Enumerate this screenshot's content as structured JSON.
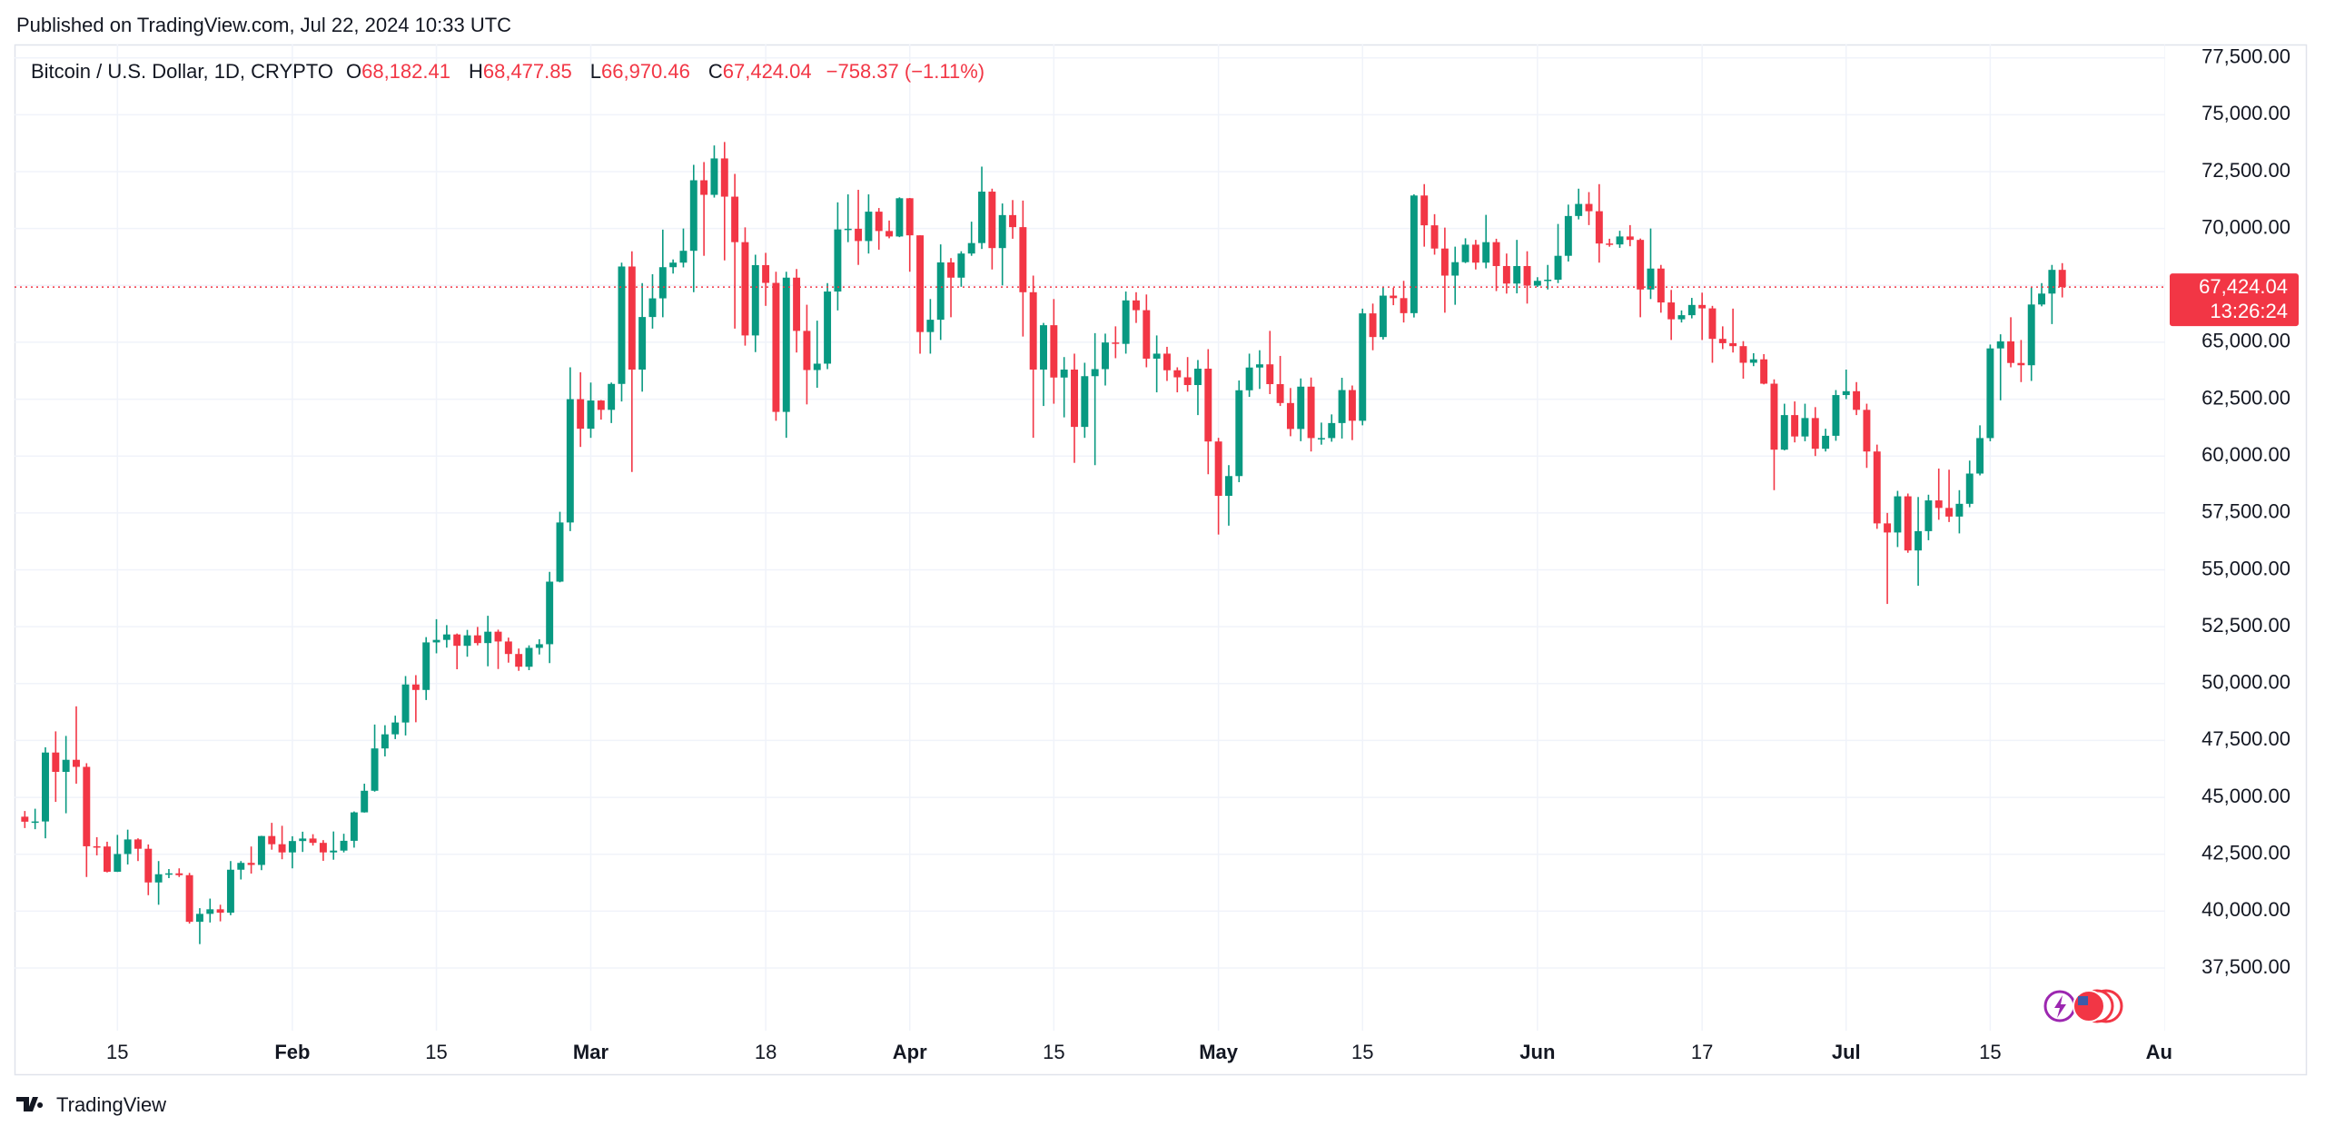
{
  "header": {
    "published": "Published on TradingView.com, Jul 22, 2024 10:33 UTC"
  },
  "footer": {
    "brand": "TradingView"
  },
  "chart_data": {
    "type": "candlestick",
    "legend": {
      "symbol": "Bitcoin / U.S. Dollar, 1D, CRYPTO",
      "items": [
        {
          "key": "O",
          "label": "68,182.41"
        },
        {
          "key": "H",
          "label": "68,477.85"
        },
        {
          "key": "L",
          "label": "66,970.46"
        },
        {
          "key": "C",
          "label": "67,424.04"
        }
      ],
      "change": "−758.37 (−1.11%)"
    },
    "price_label": "67,424.04",
    "countdown": "13:26:24",
    "up_color": "#089981",
    "down_color": "#f23645",
    "grid": true,
    "xlim": [
      "2024-01-05",
      "2024-08-01"
    ],
    "xticks": [
      {
        "value": "2024-01-15",
        "label": "15"
      },
      {
        "value": "2024-02-01",
        "label": "Feb"
      },
      {
        "value": "2024-02-15",
        "label": "15"
      },
      {
        "value": "2024-03-01",
        "label": "Mar"
      },
      {
        "value": "2024-03-18",
        "label": "18"
      },
      {
        "value": "2024-04-01",
        "label": "Apr"
      },
      {
        "value": "2024-04-15",
        "label": "15"
      },
      {
        "value": "2024-05-01",
        "label": "May"
      },
      {
        "value": "2024-05-15",
        "label": "15"
      },
      {
        "value": "2024-06-01",
        "label": "Jun"
      },
      {
        "value": "2024-06-17",
        "label": "17"
      },
      {
        "value": "2024-07-01",
        "label": "Jul"
      },
      {
        "value": "2024-07-15",
        "label": "15"
      },
      {
        "value": "2024-08-01",
        "label": "Aug"
      }
    ],
    "ylim": [
      34746,
      78087
    ],
    "yticks": [
      {
        "value": 37500,
        "label": "37,500.00"
      },
      {
        "value": 40000,
        "label": "40,000.00"
      },
      {
        "value": 42500,
        "label": "42,500.00"
      },
      {
        "value": 45000,
        "label": "45,000.00"
      },
      {
        "value": 47500,
        "label": "47,500.00"
      },
      {
        "value": 50000,
        "label": "50,000.00"
      },
      {
        "value": 52500,
        "label": "52,500.00"
      },
      {
        "value": 55000,
        "label": "55,000.00"
      },
      {
        "value": 57500,
        "label": "57,500.00"
      },
      {
        "value": 60000,
        "label": "60,000.00"
      },
      {
        "value": 62500,
        "label": "62,500.00"
      },
      {
        "value": 65000,
        "label": "65,000.00"
      },
      {
        "value": 67500,
        "label": "67,500.00"
      },
      {
        "value": 70000,
        "label": "70,000.00"
      },
      {
        "value": 72500,
        "label": "72,500.00"
      },
      {
        "value": 75000,
        "label": "75,000.00"
      },
      {
        "value": 77500,
        "label": "77,500.00"
      }
    ],
    "x": [
      "2024-01-06",
      "2024-01-07",
      "2024-01-08",
      "2024-01-09",
      "2024-01-10",
      "2024-01-11",
      "2024-01-12",
      "2024-01-13",
      "2024-01-14",
      "2024-01-15",
      "2024-01-16",
      "2024-01-17",
      "2024-01-18",
      "2024-01-19",
      "2024-01-20",
      "2024-01-21",
      "2024-01-22",
      "2024-01-23",
      "2024-01-24",
      "2024-01-25",
      "2024-01-26",
      "2024-01-27",
      "2024-01-28",
      "2024-01-29",
      "2024-01-30",
      "2024-01-31",
      "2024-02-01",
      "2024-02-02",
      "2024-02-03",
      "2024-02-04",
      "2024-02-05",
      "2024-02-06",
      "2024-02-07",
      "2024-02-08",
      "2024-02-09",
      "2024-02-10",
      "2024-02-11",
      "2024-02-12",
      "2024-02-13",
      "2024-02-14",
      "2024-02-15",
      "2024-02-16",
      "2024-02-17",
      "2024-02-18",
      "2024-02-19",
      "2024-02-20",
      "2024-02-21",
      "2024-02-22",
      "2024-02-23",
      "2024-02-24",
      "2024-02-25",
      "2024-02-26",
      "2024-02-27",
      "2024-02-28",
      "2024-02-29",
      "2024-03-01",
      "2024-03-02",
      "2024-03-03",
      "2024-03-04",
      "2024-03-05",
      "2024-03-06",
      "2024-03-07",
      "2024-03-08",
      "2024-03-09",
      "2024-03-10",
      "2024-03-11",
      "2024-03-12",
      "2024-03-13",
      "2024-03-14",
      "2024-03-15",
      "2024-03-16",
      "2024-03-17",
      "2024-03-18",
      "2024-03-19",
      "2024-03-20",
      "2024-03-21",
      "2024-03-22",
      "2024-03-23",
      "2024-03-24",
      "2024-03-25",
      "2024-03-26",
      "2024-03-27",
      "2024-03-28",
      "2024-03-29",
      "2024-03-30",
      "2024-03-31",
      "2024-04-01",
      "2024-04-02",
      "2024-04-03",
      "2024-04-04",
      "2024-04-05",
      "2024-04-06",
      "2024-04-07",
      "2024-04-08",
      "2024-04-09",
      "2024-04-10",
      "2024-04-11",
      "2024-04-12",
      "2024-04-13",
      "2024-04-14",
      "2024-04-15",
      "2024-04-16",
      "2024-04-17",
      "2024-04-18",
      "2024-04-19",
      "2024-04-20",
      "2024-04-21",
      "2024-04-22",
      "2024-04-23",
      "2024-04-24",
      "2024-04-25",
      "2024-04-26",
      "2024-04-27",
      "2024-04-28",
      "2024-04-29",
      "2024-04-30",
      "2024-05-01",
      "2024-05-02",
      "2024-05-03",
      "2024-05-04",
      "2024-05-05",
      "2024-05-06",
      "2024-05-07",
      "2024-05-08",
      "2024-05-09",
      "2024-05-10",
      "2024-05-11",
      "2024-05-12",
      "2024-05-13",
      "2024-05-14",
      "2024-05-15",
      "2024-05-16",
      "2024-05-17",
      "2024-05-18",
      "2024-05-19",
      "2024-05-20",
      "2024-05-21",
      "2024-05-22",
      "2024-05-23",
      "2024-05-24",
      "2024-05-25",
      "2024-05-26",
      "2024-05-27",
      "2024-05-28",
      "2024-05-29",
      "2024-05-30",
      "2024-05-31",
      "2024-06-01",
      "2024-06-02",
      "2024-06-03",
      "2024-06-04",
      "2024-06-05",
      "2024-06-06",
      "2024-06-07",
      "2024-06-08",
      "2024-06-09",
      "2024-06-10",
      "2024-06-11",
      "2024-06-12",
      "2024-06-13",
      "2024-06-14",
      "2024-06-15",
      "2024-06-16",
      "2024-06-17",
      "2024-06-18",
      "2024-06-19",
      "2024-06-20",
      "2024-06-21",
      "2024-06-22",
      "2024-06-23",
      "2024-06-24",
      "2024-06-25",
      "2024-06-26",
      "2024-06-27",
      "2024-06-28",
      "2024-06-29",
      "2024-06-30",
      "2024-07-01",
      "2024-07-02",
      "2024-07-03",
      "2024-07-04",
      "2024-07-05",
      "2024-07-06",
      "2024-07-07",
      "2024-07-08",
      "2024-07-09",
      "2024-07-10",
      "2024-07-11",
      "2024-07-12",
      "2024-07-13",
      "2024-07-14",
      "2024-07-15",
      "2024-07-16",
      "2024-07-17",
      "2024-07-18",
      "2024-07-19",
      "2024-07-20",
      "2024-07-21",
      "2024-07-22"
    ],
    "open": [
      44150,
      43930,
      43940,
      46970,
      46120,
      46650,
      46340,
      42850,
      42840,
      41730,
      42510,
      43150,
      42740,
      41260,
      41620,
      41660,
      41580,
      39530,
      39880,
      40080,
      39930,
      41820,
      42120,
      42030,
      43300,
      42940,
      42580,
      43080,
      43190,
      43000,
      42580,
      42660,
      43090,
      44340,
      45290,
      47150,
      47770,
      48290,
      49960,
      49720,
      51810,
      51920,
      52160,
      51660,
      52120,
      51780,
      52280,
      51850,
      51300,
      50740,
      51570,
      51730,
      54480,
      57080,
      62500,
      61200,
      62440,
      62030,
      63170,
      68330,
      63800,
      66110,
      66930,
      68300,
      68500,
      69020,
      72120,
      71480,
      73080,
      71400,
      69400,
      65300,
      68390,
      67610,
      61940,
      67840,
      65500,
      63780,
      64060,
      67230,
      69960,
      69990,
      69450,
      70740,
      69890,
      69650,
      71330,
      69700,
      65450,
      65990,
      68510,
      67840,
      68900,
      69360,
      71620,
      69140,
      70590,
      70060,
      67200,
      63800,
      65750,
      63450,
      63800,
      61280,
      63510,
      63820,
      64990,
      64930,
      66840,
      66410,
      64280,
      64500,
      63770,
      63460,
      63120,
      63840,
      60640,
      58250,
      59120,
      62890,
      63890,
      64030,
      63160,
      62330,
      61190,
      63050,
      60790,
      60790,
      61450,
      62900,
      61550,
      66270,
      65230,
      67050,
      66940,
      66280,
      71450,
      70140,
      69120,
      67930,
      68520,
      69290,
      68500,
      69400,
      68350,
      67580,
      68350,
      67490,
      67700,
      67750,
      68800,
      70550,
      71080,
      70760,
      69340,
      69300,
      69650,
      69500,
      67320,
      68240,
      66750,
      66010,
      66190,
      66640,
      66490,
      65150,
      64960,
      64830,
      64100,
      64250,
      63180,
      60280,
      61800,
      60860,
      61670,
      60320,
      60890,
      62680,
      62850,
      62030,
      60200,
      57040,
      56640,
      58230,
      55850,
      56700,
      58050,
      57720,
      57340,
      57900,
      59230,
      60790,
      64730,
      65040,
      64090,
      63990,
      66660,
      67140,
      68182.41
    ],
    "high": [
      44400,
      44500,
      47200,
      47900,
      47700,
      49000,
      46500,
      43250,
      43050,
      43350,
      43580,
      43200,
      42930,
      42200,
      41850,
      41880,
      41680,
      40130,
      40550,
      40280,
      42200,
      42200,
      42840,
      43310,
      43880,
      43750,
      43290,
      43490,
      43380,
      43120,
      43500,
      43400,
      44380,
      45600,
      48200,
      48170,
      48590,
      50330,
      50370,
      52040,
      52830,
      52570,
      52200,
      52360,
      52490,
      52980,
      52370,
      52020,
      51540,
      51680,
      51950,
      54910,
      57550,
      63900,
      63680,
      63230,
      62460,
      63230,
      68500,
      69000,
      67600,
      67990,
      69950,
      68640,
      70000,
      72800,
      72920,
      73650,
      73800,
      72400,
      70050,
      68850,
      68930,
      68100,
      68100,
      68220,
      66650,
      65950,
      67600,
      71150,
      71500,
      71700,
      71500,
      70900,
      70350,
      71370,
      71340,
      69700,
      66900,
      69300,
      68700,
      69000,
      70300,
      72720,
      71750,
      71100,
      71250,
      71230,
      67930,
      65850,
      66900,
      64350,
      64500,
      64100,
      65400,
      65380,
      65700,
      67230,
      67200,
      67100,
      65300,
      64800,
      63900,
      64350,
      64220,
      64700,
      60800,
      59600,
      63320,
      64500,
      64650,
      65500,
      64400,
      62990,
      63410,
      63450,
      61470,
      61830,
      63440,
      63100,
      66480,
      66700,
      67420,
      67400,
      67700,
      71500,
      71950,
      70630,
      70040,
      69200,
      69570,
      69500,
      70600,
      69550,
      68900,
      69500,
      69000,
      67860,
      68400,
      70200,
      71050,
      71750,
      71600,
      71950,
      69550,
      69900,
      70150,
      69560,
      70000,
      68400,
      67300,
      66400,
      66950,
      67180,
      66600,
      65700,
      66480,
      65050,
      64520,
      64480,
      63370,
      62300,
      62400,
      62300,
      62150,
      61200,
      62900,
      63800,
      63250,
      62300,
      60500,
      57500,
      58470,
      58350,
      58200,
      58300,
      59450,
      59400,
      58500,
      59800,
      61350,
      64900,
      65350,
      66100,
      65100,
      67400,
      67600,
      68400,
      68477.85
    ],
    "low": [
      43650,
      43600,
      43200,
      44800,
      44300,
      45600,
      41500,
      42450,
      41700,
      41720,
      42050,
      42200,
      40700,
      40280,
      41450,
      41500,
      39450,
      38550,
      39500,
      39550,
      39820,
      41390,
      41650,
      41800,
      42700,
      42280,
      41880,
      42600,
      42880,
      42210,
      42260,
      42580,
      42790,
      44330,
      45250,
      46800,
      47560,
      47720,
      48300,
      49280,
      51330,
      51580,
      50630,
      51180,
      51680,
      50760,
      50640,
      50920,
      50560,
      50590,
      51280,
      50900,
      54450,
      56700,
      60400,
      60800,
      61600,
      61450,
      62400,
      59300,
      62830,
      65600,
      66100,
      68020,
      68290,
      67200,
      68800,
      71360,
      68600,
      65600,
      64850,
      64570,
      66600,
      61550,
      60800,
      64550,
      62270,
      63000,
      63820,
      66400,
      69400,
      68400,
      68900,
      69070,
      69570,
      69620,
      68100,
      64500,
      64500,
      65100,
      66100,
      67440,
      68800,
      69100,
      68200,
      67500,
      69550,
      65250,
      60800,
      62200,
      62300,
      61700,
      59700,
      60800,
      59600,
      63100,
      64300,
      64500,
      65850,
      63900,
      62800,
      63300,
      62800,
      62830,
      61800,
      59200,
      56550,
      56940,
      58850,
      62600,
      62950,
      62720,
      62200,
      60870,
      60650,
      60200,
      60500,
      60630,
      60770,
      60700,
      61350,
      64650,
      65120,
      66630,
      65870,
      66090,
      69200,
      68850,
      66300,
      66650,
      68480,
      68200,
      68250,
      67250,
      67140,
      67150,
      66700,
      67430,
      67320,
      67600,
      68550,
      70400,
      70150,
      68500,
      69200,
      69150,
      69220,
      66100,
      66900,
      66300,
      65100,
      65870,
      66050,
      65100,
      64100,
      64700,
      64550,
      63400,
      63950,
      63150,
      58500,
      60250,
      60600,
      60650,
      60000,
      60200,
      60670,
      62500,
      61800,
      59480,
      56800,
      53500,
      56000,
      55750,
      54300,
      56300,
      57200,
      57100,
      56600,
      57750,
      59150,
      60650,
      62450,
      63900,
      63250,
      63300,
      66580,
      65800,
      66970.46
    ],
    "close": [
      43930,
      43940,
      46970,
      46120,
      46650,
      46340,
      42850,
      42840,
      41730,
      42510,
      43150,
      42740,
      41260,
      41620,
      41660,
      41580,
      39530,
      39880,
      40080,
      39930,
      41820,
      42120,
      42030,
      43300,
      42940,
      42580,
      43080,
      43190,
      43000,
      42580,
      42660,
      43090,
      44340,
      45290,
      47150,
      47770,
      48290,
      49960,
      49720,
      51810,
      51920,
      52160,
      51660,
      52120,
      51780,
      52280,
      51850,
      51300,
      50740,
      51570,
      51730,
      54480,
      57080,
      62500,
      61200,
      62440,
      62030,
      63170,
      68330,
      63800,
      66110,
      66930,
      68300,
      68500,
      69020,
      72120,
      71480,
      73080,
      71400,
      69400,
      65300,
      68390,
      67610,
      61940,
      67840,
      65500,
      63780,
      64060,
      67230,
      69960,
      69990,
      69450,
      70740,
      69890,
      69650,
      71330,
      69700,
      65450,
      65990,
      68510,
      67840,
      68900,
      69360,
      71620,
      69140,
      70590,
      70060,
      67200,
      63800,
      65750,
      63450,
      63800,
      61280,
      63510,
      63820,
      64990,
      64930,
      66840,
      66410,
      64280,
      64500,
      63770,
      63460,
      63120,
      63840,
      60640,
      58250,
      59120,
      62890,
      63890,
      64030,
      63160,
      62330,
      61190,
      63050,
      60790,
      60790,
      61450,
      62900,
      61550,
      66270,
      65230,
      67050,
      66940,
      66280,
      71450,
      70140,
      69120,
      67930,
      68520,
      69290,
      68500,
      69400,
      68350,
      67580,
      68350,
      67490,
      67700,
      67750,
      68800,
      70550,
      71080,
      70760,
      69340,
      69300,
      69650,
      69500,
      67320,
      68240,
      66750,
      66010,
      66190,
      66640,
      66490,
      65150,
      64960,
      64830,
      64100,
      64250,
      63180,
      60280,
      61800,
      60860,
      61670,
      60320,
      60890,
      62680,
      62850,
      62030,
      60200,
      57040,
      56640,
      58230,
      55850,
      56700,
      58050,
      57720,
      57340,
      57900,
      59230,
      60790,
      64730,
      65040,
      64090,
      63990,
      66660,
      67140,
      68182.41,
      67424.04
    ]
  }
}
